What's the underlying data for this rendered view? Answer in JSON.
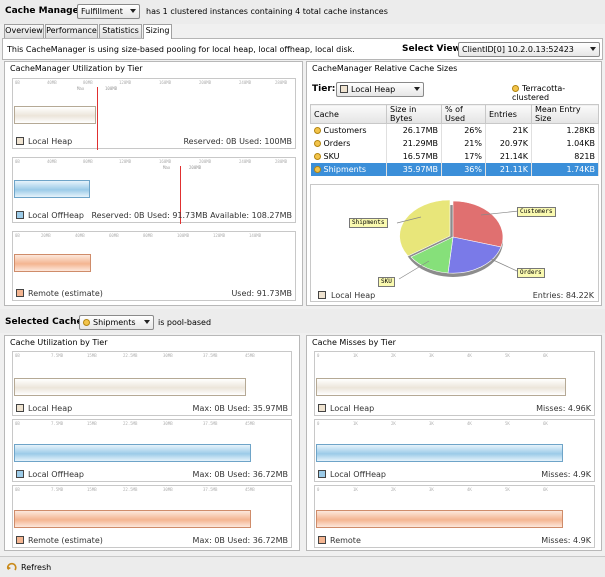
{
  "header": {
    "cache_manager_label": "Cache Manager:",
    "cache_manager_value": "Fulfillment",
    "summary": "has 1 clustered instances containing 4 total cache instances"
  },
  "tabs": [
    {
      "label": "Overview"
    },
    {
      "label": "Performance"
    },
    {
      "label": "Statistics"
    },
    {
      "label": "Sizing",
      "active": true
    }
  ],
  "info": {
    "text": "This CacheManager is using size-based pooling for local heap, local offheap, local disk.",
    "select_view_label": "Select View:",
    "select_view_value": "ClientID[0] 10.2.0.13:52423"
  },
  "utilization": {
    "title": "CacheManager Utilization by Tier",
    "tiers": [
      {
        "name": "Local Heap",
        "stats": "Reserved: 0B Used: 100MB",
        "marker": "100MB",
        "max": "Max"
      },
      {
        "name": "Local OffHeap",
        "stats": "Reserved: 0B Used: 91.73MB  Available: 108.27MB",
        "marker": "200MB",
        "max": "Max"
      },
      {
        "name": "Remote (estimate)",
        "stats": "Used: 91.73MB"
      }
    ]
  },
  "relative": {
    "title": "CacheManager Relative Cache Sizes",
    "tier_label": "Tier:",
    "tier_value": "Local Heap",
    "clustered_label": "Terracotta-clustered",
    "columns": [
      "Cache",
      "Size in Bytes",
      "% of Used",
      "Entries",
      "Mean Entry Size"
    ],
    "rows": [
      {
        "cache": "Customers",
        "size": "26.17MB",
        "pct": "26%",
        "entries": "21K",
        "mean": "1.28KB"
      },
      {
        "cache": "Orders",
        "size": "21.29MB",
        "pct": "21%",
        "entries": "20.97K",
        "mean": "1.04KB"
      },
      {
        "cache": "SKU",
        "size": "16.57MB",
        "pct": "17%",
        "entries": "21.14K",
        "mean": "821B"
      },
      {
        "cache": "Shipments",
        "size": "35.97MB",
        "pct": "36%",
        "entries": "21.11K",
        "mean": "1.74KB",
        "selected": true
      }
    ],
    "pie_labels": {
      "customers": "Customers",
      "orders": "Orders",
      "sku": "SKU",
      "shipments": "Shipments"
    },
    "pie_tier": "Local Heap",
    "pie_entries": "Entries: 84.22K"
  },
  "selected_cache": {
    "label": "Selected Cache:",
    "value": "Shipments",
    "suffix": "is pool-based"
  },
  "cache_util": {
    "title": "Cache Utilization by Tier",
    "tiers": [
      {
        "name": "Local Heap",
        "stats": "Max: 0B  Used: 35.97MB"
      },
      {
        "name": "Local OffHeap",
        "stats": "Max: 0B  Used: 36.72MB"
      },
      {
        "name": "Remote (estimate)",
        "stats": "Max: 0B  Used: 36.72MB"
      }
    ]
  },
  "cache_misses": {
    "title": "Cache Misses by Tier",
    "tiers": [
      {
        "name": "Local Heap",
        "stats": "Misses: 4.96K"
      },
      {
        "name": "Local OffHeap",
        "stats": "Misses: 4.9K"
      },
      {
        "name": "Remote",
        "stats": "Misses: 4.9K"
      }
    ]
  },
  "footer": {
    "refresh_label": "Refresh"
  },
  "colors": {
    "heap": "#efe3d0",
    "offheap": "#9ccbe8",
    "remote": "#f4b591",
    "selection": "#3b8fd9",
    "marker": "#e03030",
    "pie_customers": "#e07070",
    "pie_orders": "#7a7ae8",
    "pie_sku": "#86e07a",
    "pie_shipments": "#e8e67a"
  }
}
